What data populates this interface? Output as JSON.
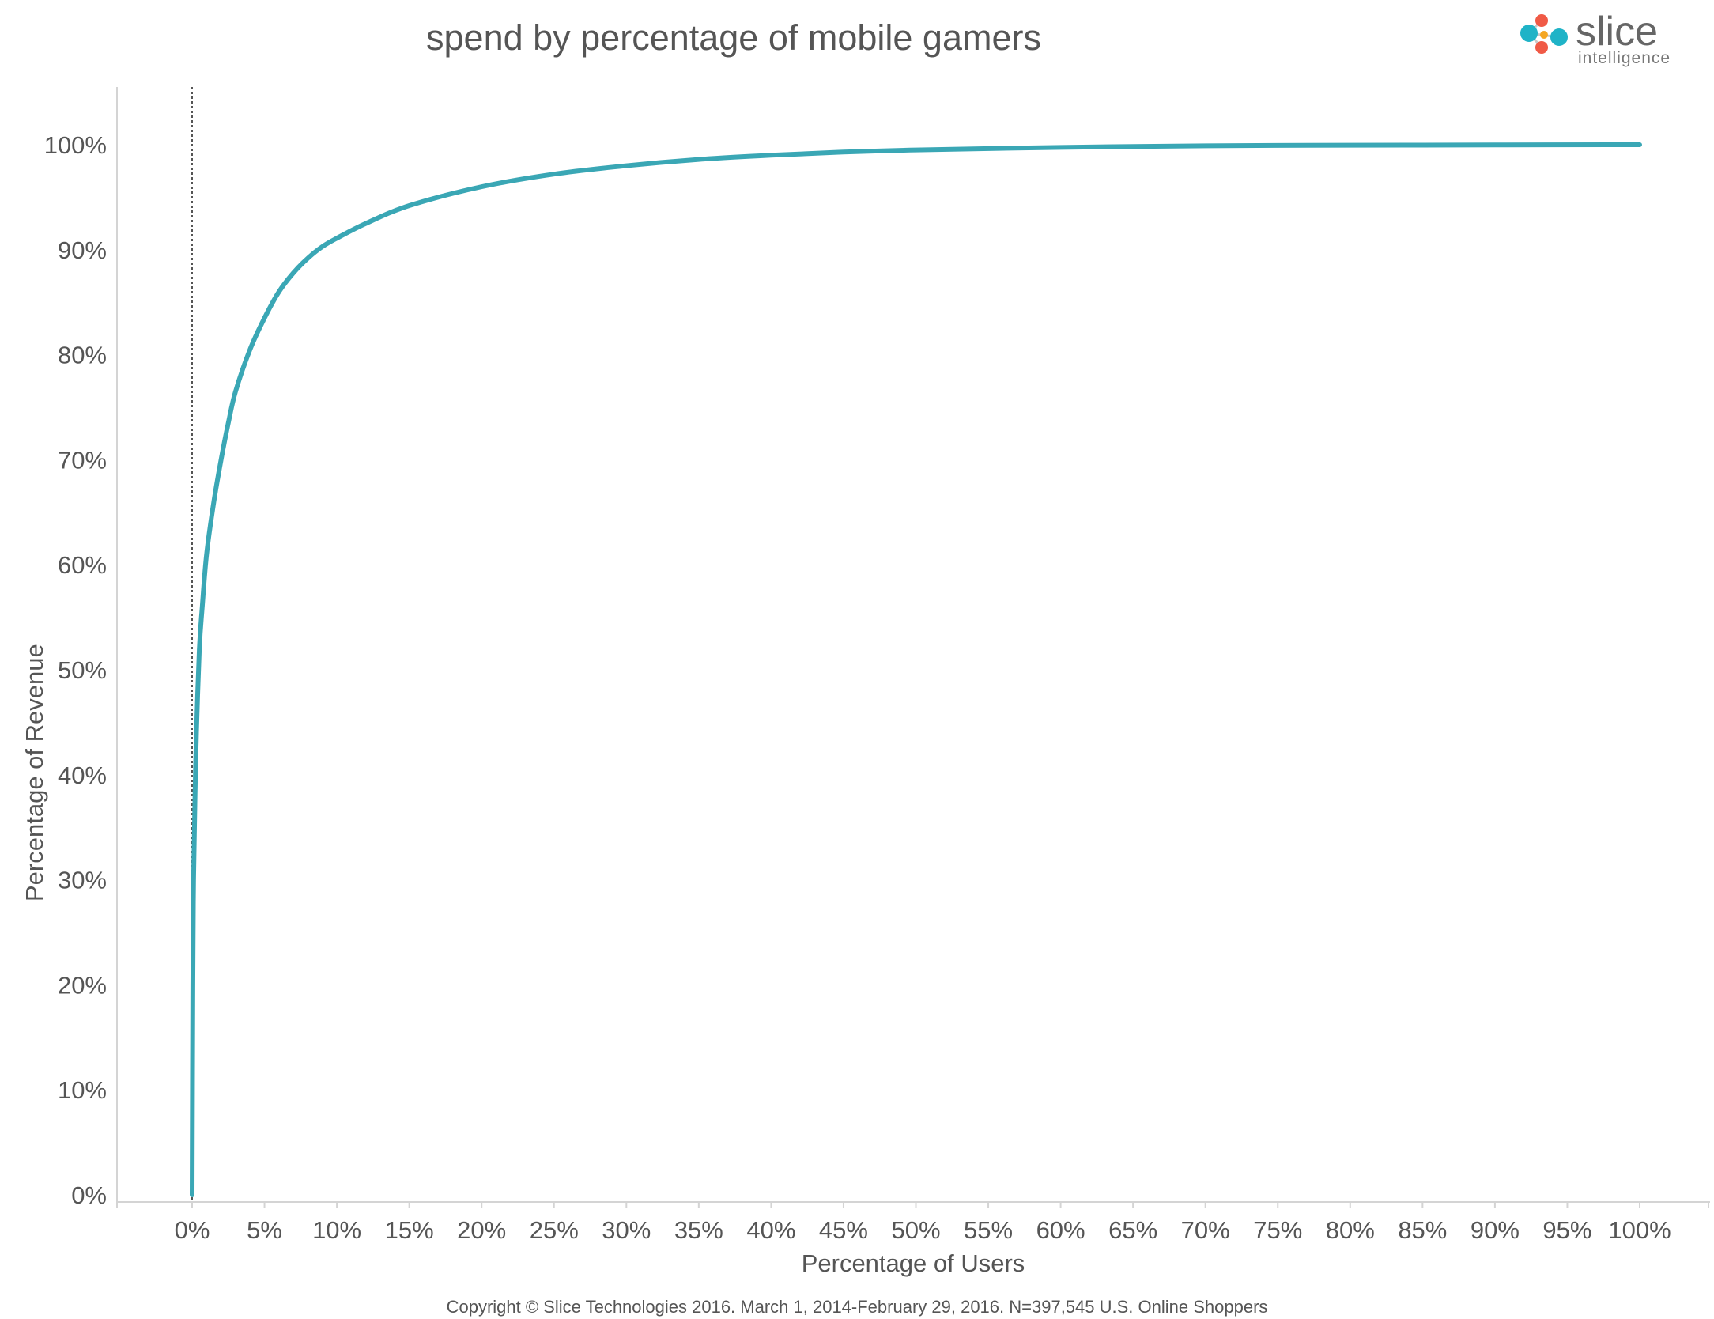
{
  "logo": {
    "name": "slice",
    "subtitle": "intelligence"
  },
  "chart_data": {
    "type": "line",
    "title": "spend by percentage of mobile gamers",
    "xlabel": "Percentage of Users",
    "ylabel": "Percentage of Revenue",
    "footnote": "Copyright © Slice Technologies 2016. March 1, 2014-February 29, 2016. N=397,545 U.S. Online Shoppers",
    "xlim": [
      0,
      100
    ],
    "ylim": [
      0,
      100
    ],
    "x_ticks": [
      "0%",
      "5%",
      "10%",
      "15%",
      "20%",
      "25%",
      "30%",
      "35%",
      "40%",
      "45%",
      "50%",
      "55%",
      "60%",
      "65%",
      "70%",
      "75%",
      "80%",
      "85%",
      "90%",
      "95%",
      "100%"
    ],
    "y_ticks": [
      "0%",
      "10%",
      "20%",
      "30%",
      "40%",
      "50%",
      "60%",
      "70%",
      "80%",
      "90%",
      "100%"
    ],
    "grid": false,
    "series": [
      {
        "color": "#3AA7B5",
        "x": [
          0,
          0.05,
          0.1,
          0.2,
          0.3,
          0.5,
          0.7,
          1,
          1.5,
          2,
          2.5,
          3,
          4,
          5,
          6,
          7,
          8,
          9,
          10,
          12,
          15,
          20,
          25,
          30,
          35,
          40,
          45,
          50,
          60,
          70,
          80,
          90,
          100
        ],
        "y": [
          0,
          20,
          30,
          38,
          44,
          52,
          56,
          61,
          66,
          70,
          73.5,
          76.5,
          80.5,
          83.5,
          86,
          87.8,
          89.2,
          90.3,
          91.1,
          92.5,
          94.2,
          96.0,
          97.2,
          98.0,
          98.6,
          99.0,
          99.3,
          99.5,
          99.75,
          99.9,
          99.95,
          99.98,
          100
        ]
      }
    ]
  }
}
